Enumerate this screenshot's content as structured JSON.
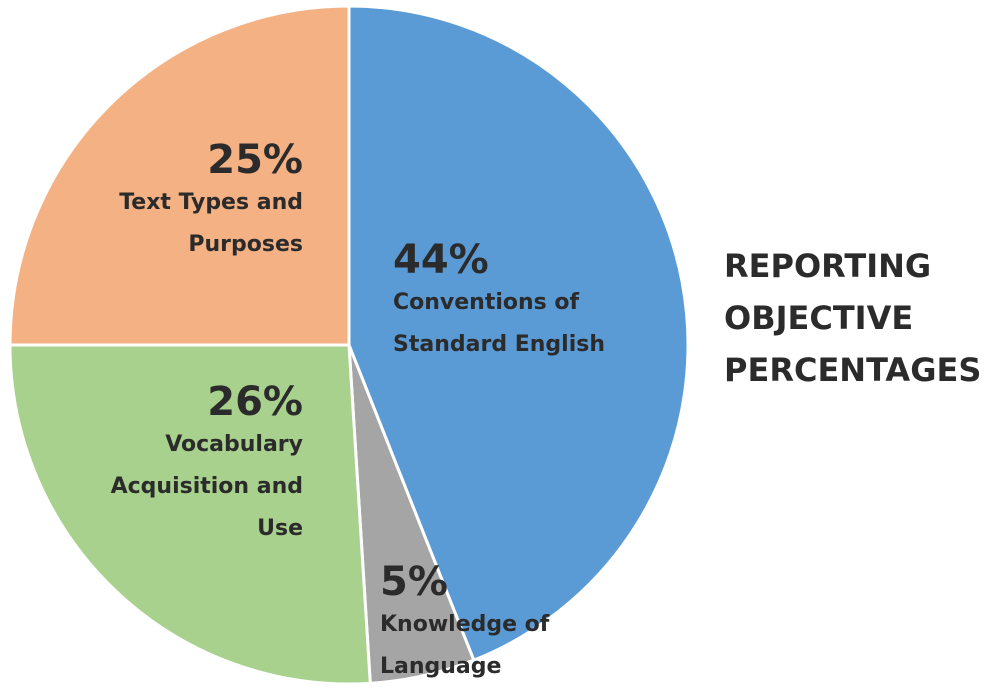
{
  "chart_data": {
    "type": "pie",
    "title": "REPORTING OBJECTIVE PERCENTAGES",
    "categories": [
      "Conventions of Standard English",
      "Knowledge of Language",
      "Vocabulary Acquisition and Use",
      "Text Types and Purposes"
    ],
    "values": [
      44,
      5,
      26,
      25
    ],
    "value_labels": [
      "44%",
      "5%",
      "26%",
      "25%"
    ],
    "colors": [
      "#5b9bd5",
      "#a5a5a5",
      "#a9d18e",
      "#f4b183"
    ]
  }
}
